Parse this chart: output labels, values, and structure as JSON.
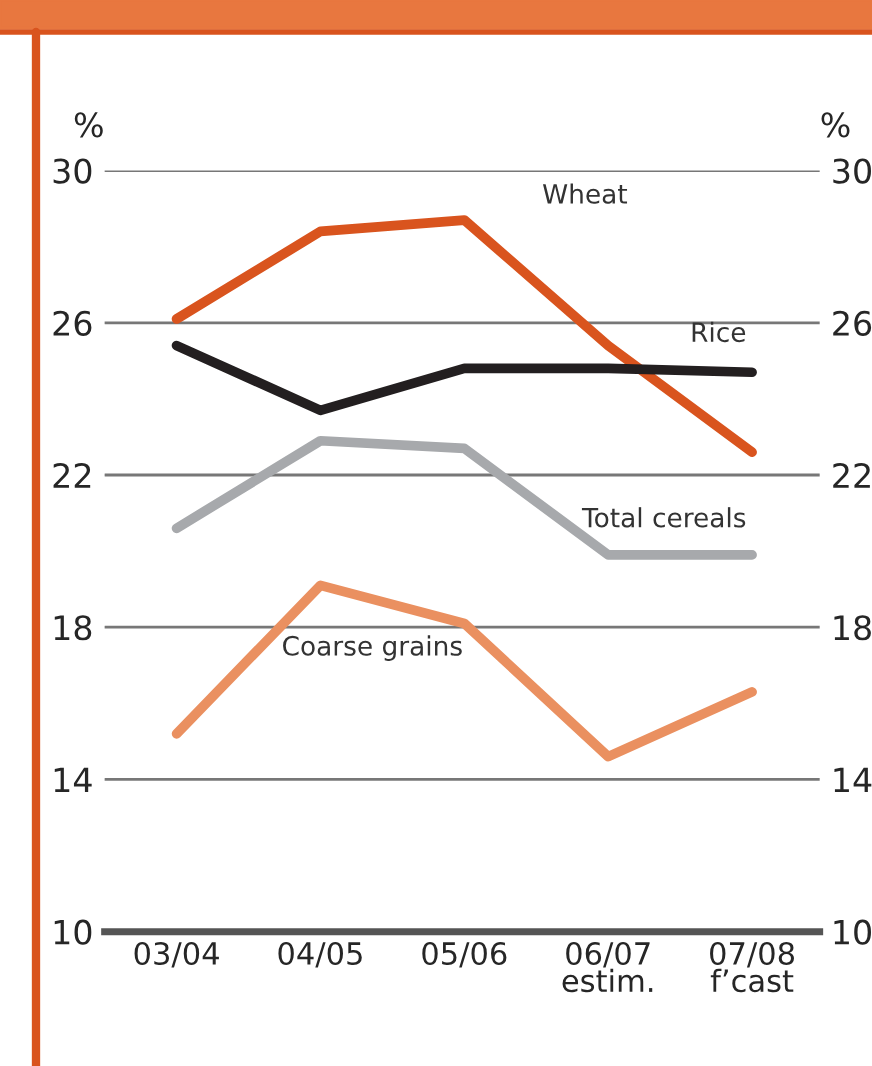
{
  "chart_data": {
    "type": "line",
    "categories": [
      "03/04",
      "04/05",
      "05/06",
      "06/07\nestim.",
      "07/08\nf’cast"
    ],
    "series": [
      {
        "name": "Wheat",
        "color": "#d9541e",
        "values": [
          26.1,
          28.4,
          28.7,
          25.4,
          22.6
        ]
      },
      {
        "name": "Rice",
        "color": "#231f20",
        "values": [
          25.4,
          23.7,
          24.8,
          24.8,
          24.7
        ]
      },
      {
        "name": "Total cereals",
        "color": "#a7a9ac",
        "values": [
          20.6,
          22.9,
          22.7,
          19.9,
          19.9
        ]
      },
      {
        "name": "Coarse grains",
        "color": "#ea9060",
        "values": [
          15.2,
          19.1,
          18.1,
          14.6,
          16.3
        ]
      }
    ],
    "ylabel": "%",
    "y2label": "%",
    "ylim": [
      10,
      30
    ],
    "yticks": [
      10,
      14,
      18,
      22,
      26,
      30
    ],
    "y2lim": [
      10,
      30
    ],
    "y2ticks": [
      10,
      14,
      18,
      22,
      26,
      30
    ],
    "grid": "y",
    "legend": false,
    "marker": "none",
    "line_style": "solid"
  }
}
